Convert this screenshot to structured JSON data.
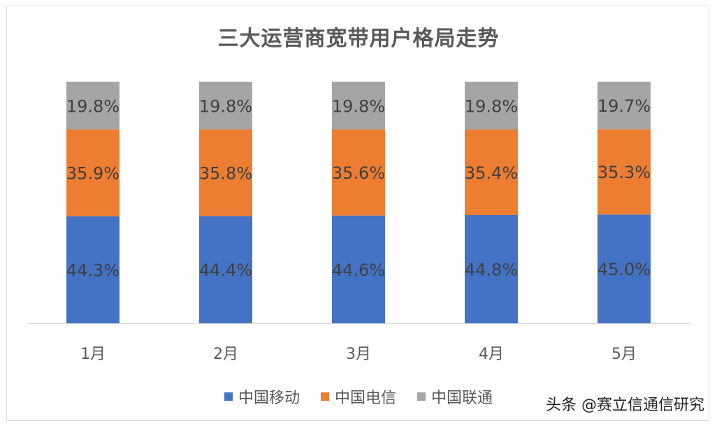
{
  "chart_data": {
    "type": "bar",
    "stacked": true,
    "title": "三大运营商宽带用户格局走势",
    "categories": [
      "1月",
      "2月",
      "3月",
      "4月",
      "5月"
    ],
    "series": [
      {
        "name": "中国移动",
        "color": "#4472C4",
        "values": [
          44.3,
          44.4,
          44.6,
          44.8,
          45.0
        ],
        "labels": [
          "44.3%",
          "44.4%",
          "44.6%",
          "44.8%",
          "45.0%"
        ]
      },
      {
        "name": "中国电信",
        "color": "#ED7D31",
        "values": [
          35.9,
          35.8,
          35.6,
          35.4,
          35.3
        ],
        "labels": [
          "35.9%",
          "35.8%",
          "35.6%",
          "35.4%",
          "35.3%"
        ]
      },
      {
        "name": "中国联通",
        "color": "#A5A5A5",
        "values": [
          19.8,
          19.8,
          19.8,
          19.8,
          19.7
        ],
        "labels": [
          "19.8%",
          "19.8%",
          "19.8%",
          "19.8%",
          "19.7%"
        ]
      }
    ],
    "ylim": [
      0,
      100
    ],
    "grid": false,
    "legend": "bottom"
  },
  "watermark": "头条 @赛立信通信研究"
}
